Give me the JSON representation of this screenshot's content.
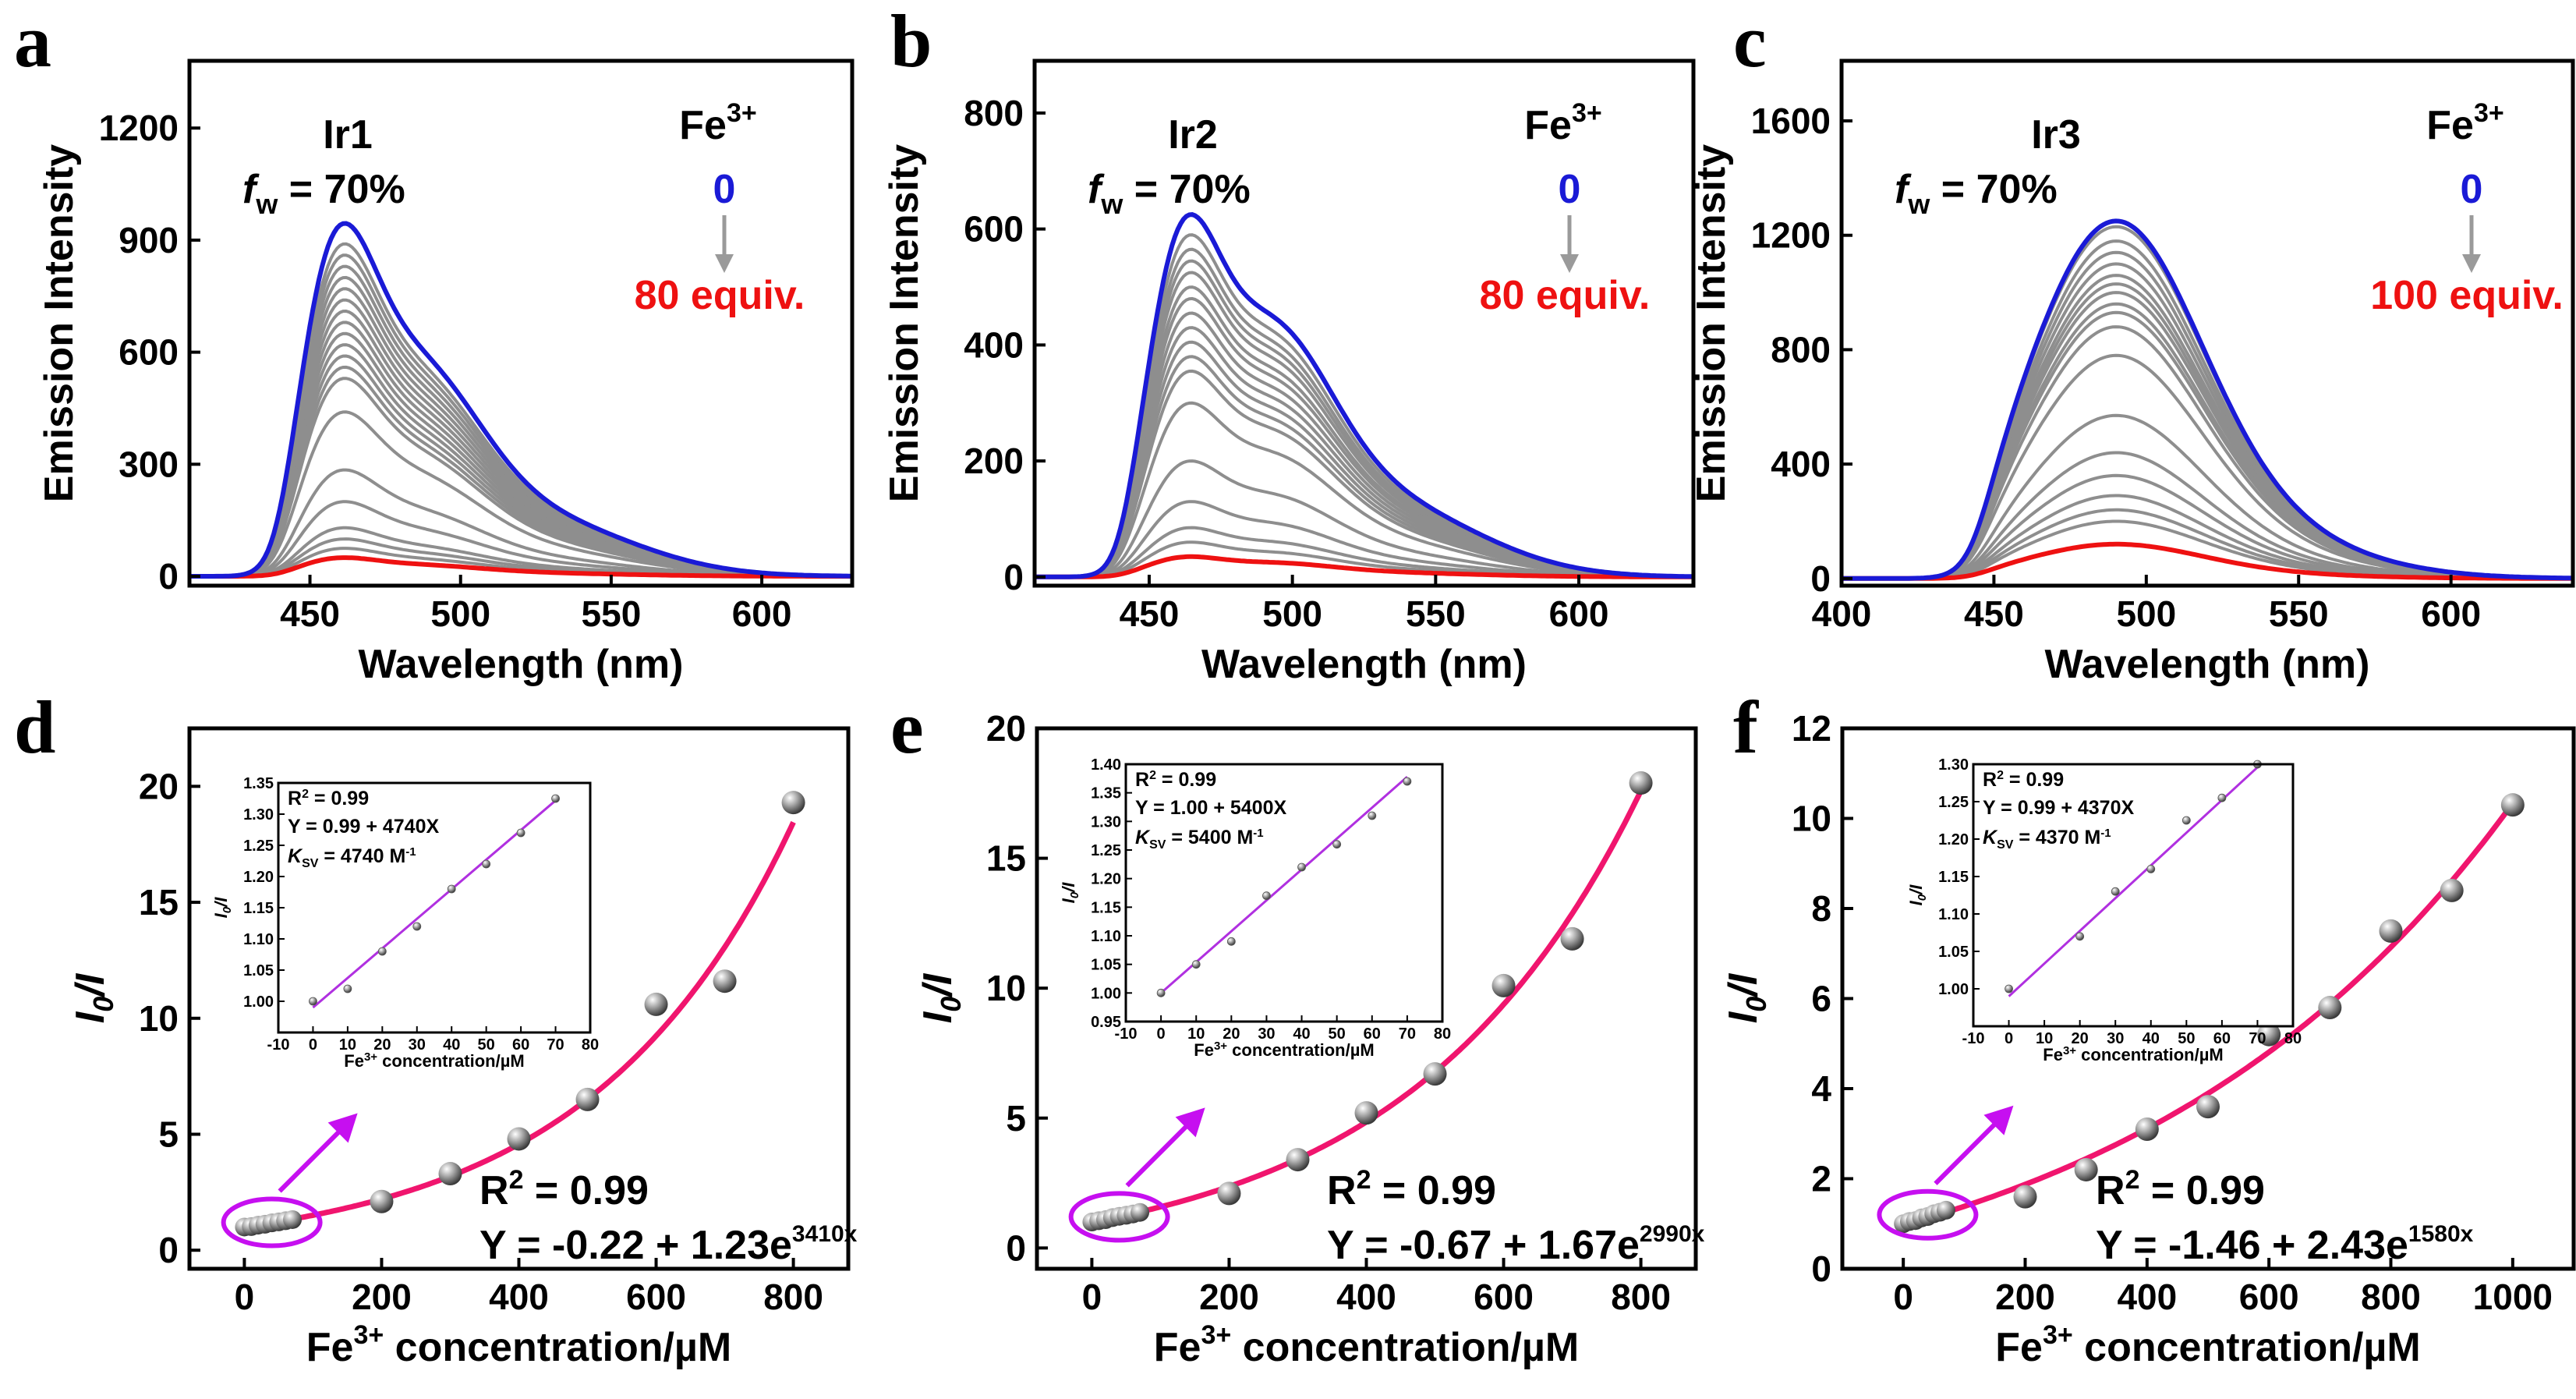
{
  "colors": {
    "start": "#1a1ad6",
    "end": "#ee1111",
    "mid": "#8e8e8e",
    "fit": "#f0156e",
    "inset_line": "#b030e0",
    "arrow": "#c60ff0",
    "annot_arrow": "#9a9a9a"
  },
  "chart_data": [
    {
      "type": "line",
      "panel": "a",
      "sample": "Ir1",
      "fw_prefix": "f",
      "fw_sub": "w",
      "fw_text": " = 70%",
      "ion_base": "Fe",
      "ion_sup": "3+",
      "from_label": "0",
      "to_label": "80 equiv.",
      "xlabel": "Wavelength (nm)",
      "ylabel": "Emission Intensity",
      "xlim": [
        410,
        630
      ],
      "ylim": [
        -25,
        1380
      ],
      "xticks": [
        450,
        500,
        550,
        600
      ],
      "yticks": [
        0,
        300,
        600,
        900,
        1200
      ],
      "peaks": [
        457,
        483
      ],
      "peak_widths": [
        13,
        22
      ],
      "peak_ratio": 0.76,
      "tail": {
        "mu": 525,
        "sigma": 32,
        "ratio": 0.22
      },
      "start_x": 440,
      "start_max": 945,
      "end_max": 50,
      "mid_maxes": [
        890,
        860,
        830,
        800,
        770,
        740,
        710,
        680,
        650,
        620,
        590,
        560,
        530,
        440,
        285,
        200,
        130,
        100,
        75
      ]
    },
    {
      "type": "line",
      "panel": "b",
      "sample": "Ir2",
      "fw_prefix": "f",
      "fw_sub": "w",
      "fw_text": " = 70%",
      "ion_base": "Fe",
      "ion_sup": "3+",
      "from_label": "0",
      "to_label": "80 equiv.",
      "xlabel": "Wavelength (nm)",
      "ylabel": "Emission Intensity",
      "xlim": [
        410,
        640
      ],
      "ylim": [
        -15,
        890
      ],
      "xticks": [
        450,
        500,
        550,
        600
      ],
      "yticks": [
        0,
        200,
        400,
        600,
        800
      ],
      "peaks": [
        460,
        490
      ],
      "peak_widths": [
        13,
        22
      ],
      "peak_ratio": 0.82,
      "tail": {
        "mu": 530,
        "sigma": 34,
        "ratio": 0.28
      },
      "start_x": 440,
      "start_max": 625,
      "end_max": 35,
      "mid_maxes": [
        590,
        565,
        545,
        525,
        500,
        480,
        455,
        430,
        405,
        380,
        355,
        300,
        200,
        130,
        85,
        60
      ]
    },
    {
      "type": "line",
      "panel": "c",
      "sample": "Ir3",
      "fw_prefix": "f",
      "fw_sub": "w",
      "fw_text": " = 70%",
      "ion_base": "Fe",
      "ion_sup": "3+",
      "from_label": "0",
      "to_label": "100 equiv.",
      "xlabel": "Wavelength (nm)",
      "ylabel": "Emission Intensity",
      "xlim": [
        400,
        640
      ],
      "ylim": [
        -25,
        1810
      ],
      "xticks": [
        400,
        450,
        500,
        550,
        600
      ],
      "yticks": [
        0,
        400,
        800,
        1200,
        1600
      ],
      "peaks": [
        488
      ],
      "peak_widths": [
        28
      ],
      "peak_ratio": 1,
      "tail": {
        "mu": 520,
        "sigma": 38,
        "ratio": 0.18
      },
      "start_x": 445,
      "start_max": 1250,
      "end_max": 120,
      "mid_maxes": [
        1230,
        1180,
        1140,
        1100,
        1060,
        1030,
        1000,
        960,
        930,
        880,
        780,
        570,
        440,
        360,
        290,
        240,
        200
      ]
    },
    {
      "type": "scatter",
      "panel": "d",
      "xlabel_base": "Fe",
      "xlabel_sup": "3+",
      "xlabel_rest": " concentration/µM",
      "ylabel_a": "I",
      "ylabel_sub": "0",
      "ylabel_b": "/I",
      "xlim": [
        -80,
        880
      ],
      "ylim": [
        -0.8,
        22.5
      ],
      "xticks": [
        0,
        200,
        400,
        600,
        800
      ],
      "yticks": [
        0,
        5,
        10,
        15,
        20
      ],
      "x": [
        0,
        10,
        20,
        30,
        40,
        50,
        60,
        70,
        200,
        300,
        400,
        500,
        600,
        700,
        800
      ],
      "y": [
        1.0,
        1.02,
        1.08,
        1.12,
        1.18,
        1.22,
        1.27,
        1.32,
        2.1,
        3.3,
        4.8,
        6.5,
        10.6,
        11.6,
        19.3
      ],
      "fit": {
        "a": -0.22,
        "b": 1.23,
        "k": 0.0034,
        "x_from": 0,
        "x_to": 800
      },
      "r2_label": "R",
      "r2_sup": "2",
      "r2_value": " = 0.99",
      "eq_base": "Y = -0.22 + 1.23e",
      "eq_sup": "3410x",
      "inset": {
        "xlim": [
          -10,
          80
        ],
        "ylim": [
          0.95,
          1.35
        ],
        "xticks": [
          -10,
          0,
          10,
          20,
          30,
          40,
          50,
          60,
          70,
          80
        ],
        "yticks": [
          1.0,
          1.05,
          1.1,
          1.15,
          1.2,
          1.25,
          1.3,
          1.35
        ],
        "ytick_labels": [
          "1.00",
          "1.05",
          "1.10",
          "1.15",
          "1.20",
          "1.25",
          "1.30",
          "1.35"
        ],
        "x": [
          0,
          10,
          20,
          30,
          40,
          50,
          60,
          70
        ],
        "y": [
          1.0,
          1.02,
          1.08,
          1.12,
          1.18,
          1.22,
          1.27,
          1.325
        ],
        "fit": {
          "intercept": 0.99,
          "slope": 0.00474,
          "x_from": 0,
          "x_to": 70
        },
        "r2_text": "R",
        "r2_sup": "2",
        "r2_value": " = 0.99",
        "eq": "Y = 0.99 + 4740X",
        "ksv_k": "K",
        "ksv_sub": "SV",
        "ksv_text": " = 4740 M",
        "ksv_sup": "-1",
        "xlabel_base": "Fe",
        "xlabel_sup": "3+",
        "xlabel_rest": " concentration/µM",
        "ylabel_a": "I",
        "ylabel_sub": "0",
        "ylabel_b": "/I"
      }
    },
    {
      "type": "scatter",
      "panel": "e",
      "xlabel_base": "Fe",
      "xlabel_sup": "3+",
      "xlabel_rest": " concentration/µM",
      "ylabel_a": "I",
      "ylabel_sub": "0",
      "ylabel_b": "/I",
      "xlim": [
        -80,
        880
      ],
      "ylim": [
        -0.8,
        20
      ],
      "xticks": [
        0,
        200,
        400,
        600,
        800
      ],
      "yticks": [
        0,
        5,
        10,
        15,
        20
      ],
      "x": [
        0,
        10,
        20,
        30,
        40,
        50,
        60,
        70,
        200,
        300,
        400,
        500,
        600,
        700,
        800
      ],
      "y": [
        1.0,
        1.05,
        1.09,
        1.17,
        1.22,
        1.26,
        1.31,
        1.37,
        2.1,
        3.4,
        5.2,
        6.7,
        10.1,
        11.9,
        17.9
      ],
      "fit": {
        "a": -0.67,
        "b": 1.67,
        "k": 0.00299,
        "x_from": 0,
        "x_to": 800
      },
      "r2_label": "R",
      "r2_sup": "2",
      "r2_value": " = 0.99",
      "eq_base": "Y = -0.67 + 1.67e",
      "eq_sup": "2990x",
      "inset": {
        "xlim": [
          -10,
          80
        ],
        "ylim": [
          0.95,
          1.4
        ],
        "xticks": [
          -10,
          0,
          10,
          20,
          30,
          40,
          50,
          60,
          70,
          80
        ],
        "yticks": [
          0.95,
          1.0,
          1.05,
          1.1,
          1.15,
          1.2,
          1.25,
          1.3,
          1.35,
          1.4
        ],
        "ytick_labels": [
          "0.95",
          "1.00",
          "1.05",
          "1.10",
          "1.15",
          "1.20",
          "1.25",
          "1.30",
          "1.35",
          "1.40"
        ],
        "x": [
          0,
          10,
          20,
          30,
          40,
          50,
          60,
          70
        ],
        "y": [
          1.0,
          1.05,
          1.09,
          1.17,
          1.22,
          1.26,
          1.31,
          1.37
        ],
        "fit": {
          "intercept": 1.0,
          "slope": 0.0054,
          "x_from": 0,
          "x_to": 70
        },
        "r2_text": "R",
        "r2_sup": "2",
        "r2_value": " = 0.99",
        "eq": "Y = 1.00 + 5400X",
        "ksv_k": "K",
        "ksv_sub": "SV",
        "ksv_text": " = 5400 M",
        "ksv_sup": "-1",
        "xlabel_base": "Fe",
        "xlabel_sup": "3+",
        "xlabel_rest": " concentration/µM",
        "ylabel_a": "I",
        "ylabel_sub": "0",
        "ylabel_b": "/I"
      }
    },
    {
      "type": "scatter",
      "panel": "f",
      "xlabel_base": "Fe",
      "xlabel_sup": "3+",
      "xlabel_rest": " concentration/µM",
      "ylabel_a": "I",
      "ylabel_sub": "0",
      "ylabel_b": "/I",
      "xlim": [
        -100,
        1100
      ],
      "ylim": [
        0,
        12
      ],
      "xticks": [
        0,
        200,
        400,
        600,
        800,
        1000
      ],
      "yticks": [
        0,
        2,
        4,
        6,
        8,
        10,
        12
      ],
      "x": [
        0,
        10,
        20,
        30,
        40,
        50,
        60,
        70,
        200,
        300,
        400,
        500,
        600,
        700,
        800,
        900,
        1000
      ],
      "y": [
        1.0,
        1.05,
        1.07,
        1.13,
        1.16,
        1.22,
        1.255,
        1.3,
        1.6,
        2.2,
        3.1,
        3.6,
        5.2,
        5.8,
        7.5,
        8.4,
        10.3
      ],
      "fit": {
        "a": -1.46,
        "b": 2.43,
        "k": 0.00158,
        "x_from": 0,
        "x_to": 1000
      },
      "r2_label": "R",
      "r2_sup": "2",
      "r2_value": " = 0.99",
      "eq_base": "Y = -1.46 + 2.43e",
      "eq_sup": "1580x",
      "inset": {
        "xlim": [
          -10,
          80
        ],
        "ylim": [
          0.95,
          1.3
        ],
        "xticks": [
          -10,
          0,
          10,
          20,
          30,
          40,
          50,
          60,
          70,
          80
        ],
        "yticks": [
          1.0,
          1.05,
          1.1,
          1.15,
          1.2,
          1.25,
          1.3
        ],
        "ytick_labels": [
          "1.00",
          "1.05",
          "1.10",
          "1.15",
          "1.20",
          "1.25",
          "1.30"
        ],
        "x": [
          0,
          20,
          30,
          40,
          50,
          60,
          70
        ],
        "y": [
          1.0,
          1.07,
          1.13,
          1.16,
          1.225,
          1.255,
          1.3
        ],
        "fit": {
          "intercept": 0.99,
          "slope": 0.00437,
          "x_from": 0,
          "x_to": 70
        },
        "r2_text": "R",
        "r2_sup": "2",
        "r2_value": " = 0.99",
        "eq": "Y = 0.99 + 4370X",
        "ksv_k": "K",
        "ksv_sub": "SV",
        "ksv_text": " = 4370 M",
        "ksv_sup": "-1",
        "xlabel_base": "Fe",
        "xlabel_sup": "3+",
        "xlabel_rest": " concentration/µM",
        "ylabel_a": "I",
        "ylabel_sub": "0",
        "ylabel_b": "/I"
      }
    }
  ]
}
